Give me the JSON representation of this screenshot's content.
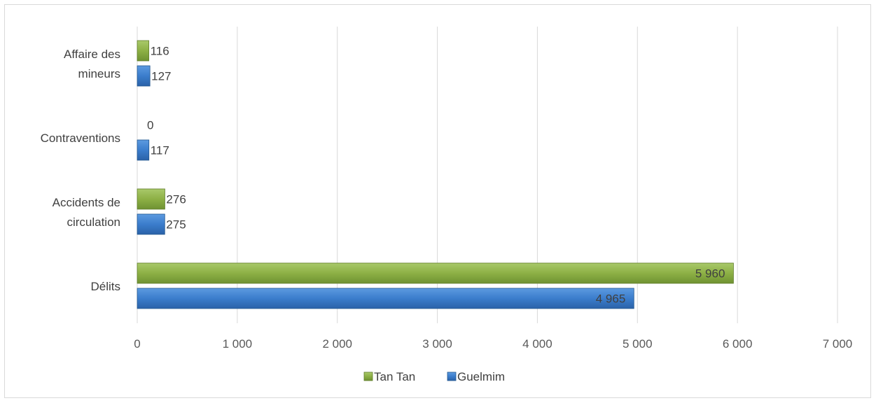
{
  "chart_data": {
    "type": "bar",
    "orientation": "horizontal",
    "categories": [
      "Délits",
      "Accidents de circulation",
      "Contraventions",
      "Affaire des mineurs"
    ],
    "category_label_lines": [
      [
        "Délits"
      ],
      [
        "Accidents de",
        "circulation"
      ],
      [
        "Contraventions"
      ],
      [
        "Affaire des",
        "mineurs"
      ]
    ],
    "series": [
      {
        "name": "Tan Tan",
        "color": "#8db045",
        "values": [
          5960,
          276,
          0,
          116
        ],
        "labels": [
          "5 960",
          "276",
          "0",
          "116"
        ]
      },
      {
        "name": "Guelmim",
        "color": "#3b7dcc",
        "values": [
          4965,
          275,
          117,
          127
        ],
        "labels": [
          "4 965",
          "275",
          "117",
          "127"
        ]
      }
    ],
    "xlim": [
      0,
      7000
    ],
    "x_ticks": [
      0,
      1000,
      2000,
      3000,
      4000,
      5000,
      6000,
      7000
    ],
    "x_tick_labels": [
      "0",
      "1 000",
      "2 000",
      "3 000",
      "4 000",
      "5 000",
      "6 000",
      "7 000"
    ],
    "grid": "vertical",
    "legend": "bottom",
    "title": "",
    "xlabel": "",
    "ylabel": ""
  }
}
